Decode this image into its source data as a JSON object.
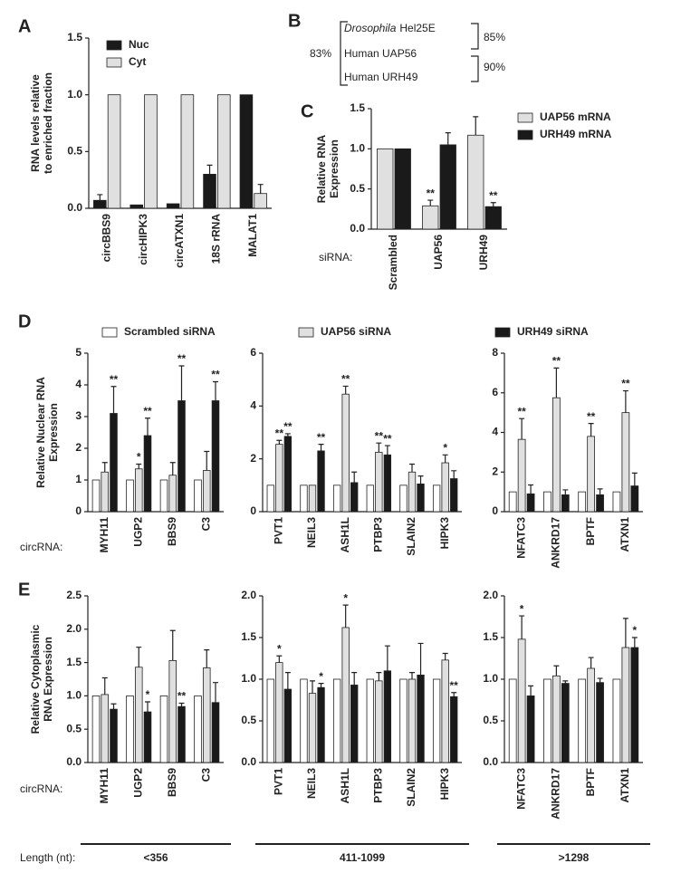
{
  "chart_data": [
    {
      "type": "bar",
      "panel_label": "A",
      "ylabel": [
        "RNA levels relative",
        "to enriched fraction"
      ],
      "categories": [
        "circBBS9",
        "circHIPK3",
        "circATXN1",
        "18S rRNA",
        "MALAT1"
      ],
      "series": [
        {
          "name": "Nuc",
          "color": "#1a1a1a",
          "values": [
            0.07,
            0.03,
            0.04,
            0.3,
            1.0
          ],
          "errors": [
            0.05,
            0.0,
            0.0,
            0.08,
            0.0
          ]
        },
        {
          "name": "Cyt",
          "color": "#e0e0e0",
          "values": [
            1.0,
            1.0,
            1.0,
            1.0,
            0.13
          ],
          "errors": [
            0.0,
            0.0,
            0.0,
            0.0,
            0.08
          ]
        }
      ],
      "ylim": [
        0,
        1.5
      ],
      "yticks": [
        {
          "value": 0,
          "label": "0.0"
        },
        0.5,
        {
          "value": 1,
          "label": "1.0"
        },
        1.5
      ],
      "legend": "upper left"
    },
    {
      "type": "bar",
      "panel_label": "C",
      "ylabel": [
        "Relative RNA",
        "Expression"
      ],
      "x_prefix": "siRNA:",
      "categories": [
        "Scrambled",
        "UAP56",
        "URH49"
      ],
      "series": [
        {
          "name": "UAP56 mRNA",
          "color": "#e0e0e0",
          "values": [
            1.0,
            0.29,
            1.17
          ],
          "errors": [
            0.0,
            0.07,
            0.23
          ],
          "significance": [
            null,
            "**",
            null
          ]
        },
        {
          "name": "URH49 mRNA",
          "color": "#1a1a1a",
          "values": [
            1.0,
            1.05,
            0.28
          ],
          "errors": [
            0.0,
            0.15,
            0.05
          ],
          "significance": [
            null,
            null,
            "**"
          ]
        }
      ],
      "ylim": [
        0,
        1.5
      ],
      "yticks": [
        {
          "value": 0,
          "label": "0.0"
        },
        0.5,
        {
          "value": 1,
          "label": "1.0"
        },
        1.5
      ],
      "legend": "right"
    },
    {
      "type": "bar",
      "panel_label": "D",
      "ylabel": [
        "Relative Nuclear RNA",
        "Expression"
      ],
      "x_prefix": "circRNA:",
      "categories": [
        "MYH11",
        "UGP2",
        "BBS9",
        "C3"
      ],
      "series": [
        {
          "name": "Scrambled siRNA",
          "color": "#ffffff",
          "values": [
            1,
            1,
            1,
            1
          ]
        },
        {
          "name": "UAP56 siRNA",
          "color": "#e0e0e0",
          "values": [
            1.25,
            1.35,
            1.15,
            1.3
          ],
          "errors": [
            0.3,
            0.15,
            0.4,
            0.6
          ],
          "significance": [
            null,
            "*",
            null,
            null
          ]
        },
        {
          "name": "URH49 siRNA",
          "color": "#1a1a1a",
          "values": [
            3.1,
            2.4,
            3.5,
            3.5
          ],
          "errors": [
            0.85,
            0.55,
            1.1,
            0.6
          ],
          "significance": [
            "**",
            "**",
            "**",
            "**"
          ]
        }
      ],
      "ylim": [
        0,
        5
      ],
      "yticks": [
        0,
        1,
        2,
        3,
        4,
        5
      ],
      "legend": "top"
    },
    {
      "type": "bar",
      "categories": [
        "PVT1",
        "NEIL3",
        "ASH1L",
        "PTBP3",
        "SLAIN2",
        "HIPK3"
      ],
      "series": [
        {
          "color": "#ffffff",
          "values": [
            1,
            1,
            1,
            1,
            1,
            1
          ]
        },
        {
          "color": "#e0e0e0",
          "values": [
            2.55,
            1.0,
            4.45,
            2.25,
            1.5,
            1.85
          ],
          "errors": [
            0.15,
            0.0,
            0.3,
            0.35,
            0.3,
            0.3
          ],
          "significance": [
            "**",
            null,
            "**",
            "**",
            null,
            "*"
          ]
        },
        {
          "color": "#1a1a1a",
          "values": [
            2.85,
            2.3,
            1.1,
            2.15,
            1.05,
            1.25
          ],
          "errors": [
            0.1,
            0.25,
            0.4,
            0.35,
            0.3,
            0.3
          ],
          "significance": [
            "**",
            "**",
            null,
            "**",
            null,
            null
          ]
        }
      ],
      "ylim": [
        0,
        6
      ],
      "yticks": [
        0,
        2,
        4,
        6
      ]
    },
    {
      "type": "bar",
      "categories": [
        "NFATC3",
        "ANKRD17",
        "BPTF",
        "ATXN1"
      ],
      "series": [
        {
          "color": "#ffffff",
          "values": [
            1,
            1,
            1,
            1
          ]
        },
        {
          "color": "#e0e0e0",
          "values": [
            3.65,
            5.75,
            3.8,
            5.0
          ],
          "errors": [
            1.05,
            1.5,
            0.65,
            1.1
          ],
          "significance": [
            "**",
            "**",
            "**",
            "**"
          ]
        },
        {
          "color": "#1a1a1a",
          "values": [
            0.9,
            0.85,
            0.85,
            1.3
          ],
          "errors": [
            0.45,
            0.25,
            0.3,
            0.65
          ]
        }
      ],
      "ylim": [
        0,
        8
      ],
      "yticks": [
        0,
        2,
        4,
        6,
        8
      ]
    },
    {
      "type": "bar",
      "panel_label": "E",
      "ylabel": [
        "Relative Cytoplasmic",
        "RNA Expression"
      ],
      "x_prefix": "circRNA:",
      "categories": [
        "MYH11",
        "UGP2",
        "BBS9",
        "C3"
      ],
      "series": [
        {
          "color": "#ffffff",
          "values": [
            1,
            1,
            1,
            1
          ]
        },
        {
          "color": "#e0e0e0",
          "values": [
            1.02,
            1.43,
            1.53,
            1.42
          ],
          "errors": [
            0.25,
            0.3,
            0.45,
            0.27
          ]
        },
        {
          "color": "#1a1a1a",
          "values": [
            0.8,
            0.76,
            0.84,
            0.9
          ],
          "errors": [
            0.08,
            0.15,
            0.05,
            0.3
          ],
          "significance": [
            null,
            "*",
            "**",
            null
          ]
        }
      ],
      "ylim": [
        0,
        2.5
      ],
      "yticks": [
        {
          "value": 0,
          "label": "0.0"
        },
        0.5,
        {
          "value": 1,
          "label": "1.0"
        },
        1.5,
        {
          "value": 2,
          "label": "2.0"
        },
        2.5
      ]
    },
    {
      "type": "bar",
      "categories": [
        "PVT1",
        "NEIL3",
        "ASH1L",
        "PTBP3",
        "SLAIN2",
        "HIPK3"
      ],
      "series": [
        {
          "color": "#ffffff",
          "values": [
            1,
            1,
            1,
            1,
            1,
            1
          ]
        },
        {
          "color": "#e0e0e0",
          "values": [
            1.2,
            0.83,
            1.62,
            0.98,
            1.0,
            1.23
          ],
          "errors": [
            0.08,
            0.15,
            0.27,
            0.1,
            0.08,
            0.08
          ],
          "significance": [
            "*",
            null,
            "*",
            null,
            null,
            null
          ]
        },
        {
          "color": "#1a1a1a",
          "values": [
            0.88,
            0.9,
            0.93,
            1.1,
            1.05,
            0.79
          ],
          "errors": [
            0.2,
            0.05,
            0.15,
            0.3,
            0.38,
            0.05
          ],
          "significance": [
            null,
            "*",
            null,
            null,
            null,
            "**"
          ]
        }
      ],
      "ylim": [
        0,
        2
      ],
      "yticks": [
        {
          "value": 0,
          "label": "0.0"
        },
        0.5,
        {
          "value": 1,
          "label": "1.0"
        },
        1.5,
        {
          "value": 2,
          "label": "2.0"
        }
      ]
    },
    {
      "type": "bar",
      "categories": [
        "NFATC3",
        "ANKRD17",
        "BPTF",
        "ATXN1"
      ],
      "series": [
        {
          "color": "#ffffff",
          "values": [
            1,
            1,
            1,
            1
          ]
        },
        {
          "color": "#e0e0e0",
          "values": [
            1.48,
            1.04,
            1.13,
            1.38
          ],
          "errors": [
            0.28,
            0.12,
            0.13,
            0.35
          ],
          "significance": [
            "*",
            null,
            null,
            null
          ]
        },
        {
          "color": "#1a1a1a",
          "values": [
            0.8,
            0.95,
            0.96,
            1.38
          ],
          "errors": [
            0.12,
            0.03,
            0.05,
            0.12
          ],
          "significance": [
            null,
            null,
            null,
            "*"
          ]
        }
      ],
      "ylim": [
        0,
        2
      ],
      "yticks": [
        {
          "value": 0,
          "label": "0.0"
        },
        0.5,
        {
          "value": 1,
          "label": "1.0"
        },
        1.5,
        {
          "value": 2,
          "label": "2.0"
        }
      ]
    }
  ],
  "panel_b": {
    "panel_label": "B",
    "species": "Drosophila",
    "gene": "Hel25E",
    "row2": "Human UAP56",
    "row3": "Human URH49",
    "left_identity": "83%",
    "top_identity": "85%",
    "bottom_identity": "90%"
  },
  "length_row": {
    "label": "Length (nt):",
    "groups": [
      "<356",
      "411-1099",
      ">1298"
    ]
  }
}
